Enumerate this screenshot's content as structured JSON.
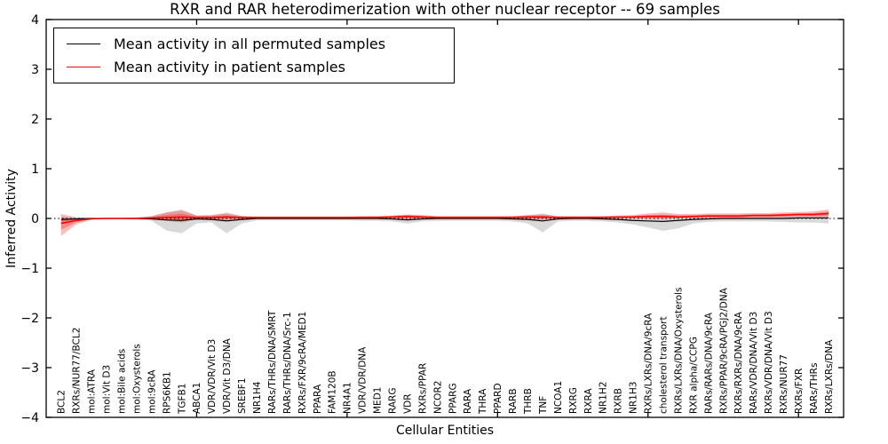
{
  "figure": {
    "title": "RXR and RAR heterodimerization with other nuclear receptor -- 69 samples",
    "xlabel": "Cellular Entities",
    "ylabel": "Inferred Activity"
  },
  "legend": {
    "items": [
      {
        "label": "Mean activity in all permuted samples",
        "color": "#000000"
      },
      {
        "label": "Mean activity in patient samples",
        "color": "#ff0000"
      }
    ]
  },
  "colors": {
    "frame": "#000000",
    "background": "#ffffff",
    "permuted_line": "#000000",
    "patient_line": "#ff0000",
    "permuted_band": "rgba(128,128,128,0.30)",
    "patient_band": "rgba(255,0,0,0.27)",
    "zero_line": "#000000"
  },
  "chart_data": {
    "type": "line",
    "title": "RXR and RAR heterodimerization with other nuclear receptor -- 69 samples",
    "xlabel": "Cellular Entities",
    "ylabel": "Inferred Activity",
    "ylim": [
      -4,
      4
    ],
    "yticks": [
      -4,
      -3,
      -2,
      -1,
      0,
      1,
      2,
      3,
      4
    ],
    "xticks": [
      10,
      20,
      30,
      40,
      50
    ],
    "grid": false,
    "legend_position": "upper left",
    "zero_line": true,
    "categories": [
      "BCL2",
      "RXRs/NUR77/BCL2",
      "mol:ATRA",
      "mol:Vit D3",
      "mol:Bile acids",
      "mol:Oxysterols",
      "mol:9cRA",
      "RPS6KB1",
      "TGFB1",
      "ABCA1",
      "VDR/VDR/Vit D3",
      "VDR/Vit D3/DNA",
      "SREBF1",
      "NR1H4",
      "RARs/THRs/DNA/SMRT",
      "RARs/THRs/DNA/Src-1",
      "RXRs/FXR/9cRA/MED1",
      "PPARA",
      "FAM120B",
      "NR4A1",
      "VDR/VDR/DNA",
      "MED1",
      "RARG",
      "VDR",
      "RXRs/PPAR",
      "NCOR2",
      "PPARG",
      "RARA",
      "THRA",
      "PPARD",
      "RARB",
      "THRB",
      "TNF",
      "NCOA1",
      "RXRG",
      "RXRA",
      "NR1H2",
      "RXRB",
      "NR1H3",
      "RXRs/LXRs/DNA/9cRA",
      "cholesterol transport",
      "RXRs/LXRs/DNA/Oxysterols",
      "RXR alpha/CCPG",
      "RARs/RARs/DNA/9cRA",
      "RXRs/PPAR/9cRA/PGJ2/DNA",
      "RXRs/RXRs/DNA/9cRA",
      "RARs/VDR/DNA/Vit D3",
      "RXRs/VDR/DNA/Vit D3",
      "RXRs/NUR77",
      "RXRs/FXR",
      "RARs/THRs",
      "RXRs/LXRs/DNA"
    ],
    "series": [
      {
        "name": "Mean activity in all permuted samples",
        "color": "#000000",
        "values": [
          -0.02,
          -0.01,
          0,
          0,
          0,
          0,
          -0.01,
          -0.03,
          -0.04,
          -0.01,
          -0.02,
          -0.05,
          -0.02,
          0,
          0,
          0,
          0,
          0,
          0,
          0,
          0,
          0,
          -0.01,
          -0.03,
          -0.01,
          0,
          0,
          0,
          0,
          0,
          -0.01,
          -0.02,
          -0.05,
          -0.01,
          0,
          0,
          -0.01,
          -0.02,
          -0.04,
          -0.05,
          -0.06,
          -0.04,
          -0.02,
          -0.01,
          0,
          0,
          0,
          0,
          0,
          0.01,
          0.01,
          0.01
        ],
        "band_upper": [
          0.04,
          0.02,
          0.01,
          0.01,
          0.01,
          0.02,
          0.04,
          0.12,
          0.18,
          0.06,
          0.06,
          0.12,
          0.05,
          0.03,
          0.03,
          0.03,
          0.03,
          0.03,
          0.03,
          0.03,
          0.04,
          0.04,
          0.05,
          0.07,
          0.05,
          0.04,
          0.04,
          0.04,
          0.04,
          0.04,
          0.04,
          0.06,
          0.1,
          0.04,
          0.04,
          0.04,
          0.04,
          0.04,
          0.05,
          0.06,
          0.07,
          0.06,
          0.05,
          0.05,
          0.05,
          0.05,
          0.05,
          0.05,
          0.06,
          0.06,
          0.07,
          0.08
        ],
        "band_lower": [
          -0.1,
          -0.05,
          -0.02,
          -0.01,
          -0.01,
          -0.02,
          -0.05,
          -0.24,
          -0.3,
          -0.1,
          -0.08,
          -0.3,
          -0.1,
          -0.04,
          -0.04,
          -0.04,
          -0.04,
          -0.04,
          -0.04,
          -0.04,
          -0.05,
          -0.05,
          -0.06,
          -0.1,
          -0.06,
          -0.05,
          -0.05,
          -0.05,
          -0.05,
          -0.05,
          -0.06,
          -0.1,
          -0.28,
          -0.06,
          -0.05,
          -0.05,
          -0.06,
          -0.08,
          -0.12,
          -0.18,
          -0.25,
          -0.2,
          -0.1,
          -0.07,
          -0.06,
          -0.06,
          -0.06,
          -0.06,
          -0.07,
          -0.08,
          -0.08,
          -0.1
        ]
      },
      {
        "name": "Mean activity in patient samples",
        "color": "#ff0000",
        "values": [
          -0.1,
          -0.04,
          -0.01,
          0,
          0,
          0,
          0.01,
          0.02,
          0.03,
          0.02,
          0.02,
          0.03,
          0.02,
          0.02,
          0.02,
          0.02,
          0.02,
          0.02,
          0.02,
          0.02,
          0.02,
          0.02,
          0.03,
          0.04,
          0.03,
          0.02,
          0.02,
          0.02,
          0.02,
          0.02,
          0.02,
          0.03,
          0.03,
          0.02,
          0.02,
          0.02,
          0.02,
          0.03,
          0.03,
          0.04,
          0.04,
          0.03,
          0.04,
          0.05,
          0.05,
          0.05,
          0.06,
          0.06,
          0.07,
          0.08,
          0.08,
          0.1
        ],
        "band_upper": [
          0.09,
          0.02,
          0.01,
          0.01,
          0.01,
          0.02,
          0.05,
          0.12,
          0.16,
          0.06,
          0.07,
          0.1,
          0.05,
          0.04,
          0.04,
          0.04,
          0.04,
          0.04,
          0.04,
          0.04,
          0.05,
          0.05,
          0.06,
          0.08,
          0.07,
          0.05,
          0.05,
          0.05,
          0.05,
          0.05,
          0.05,
          0.07,
          0.08,
          0.05,
          0.05,
          0.05,
          0.05,
          0.06,
          0.07,
          0.1,
          0.12,
          0.09,
          0.09,
          0.1,
          0.1,
          0.1,
          0.11,
          0.11,
          0.12,
          0.13,
          0.14,
          0.18
        ],
        "band_lower": [
          -0.35,
          -0.12,
          -0.02,
          -0.01,
          -0.01,
          -0.01,
          -0.02,
          -0.05,
          -0.08,
          -0.02,
          -0.03,
          -0.05,
          -0.02,
          -0.01,
          -0.01,
          -0.01,
          -0.01,
          -0.01,
          -0.01,
          -0.01,
          -0.01,
          -0.01,
          -0.01,
          -0.02,
          -0.01,
          -0.01,
          -0.01,
          -0.01,
          -0.01,
          -0.01,
          -0.01,
          -0.02,
          -0.03,
          -0.01,
          -0.01,
          -0.01,
          -0.01,
          0,
          0,
          -0.01,
          -0.01,
          0,
          0.01,
          0.01,
          0.01,
          0.01,
          0.02,
          0.02,
          0.02,
          0.03,
          0.03,
          0.03
        ]
      }
    ]
  }
}
